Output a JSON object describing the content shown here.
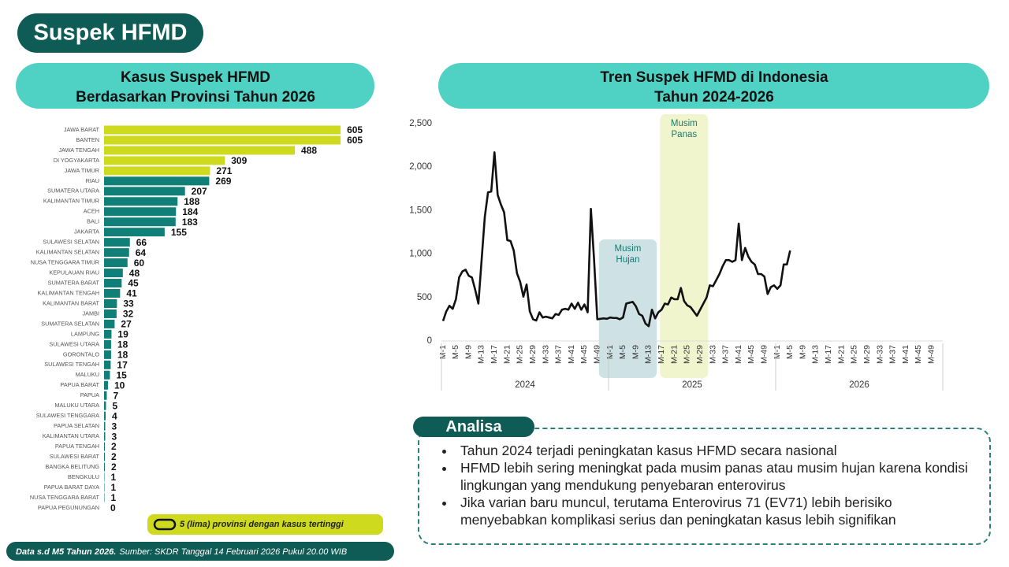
{
  "title": "Suspek HFMD",
  "footer": {
    "bold": "Data s.d M5 Tahun 2026.",
    "text": "Sumber: SKDR Tanggal 14 Februari 2026 Pukul 20.00 WIB"
  },
  "chart_data": [
    {
      "type": "bar",
      "title": [
        "Kasus Suspek HFMD",
        "Berdasarkan Provinsi Tahun 2026"
      ],
      "categories": [
        "JAWA BARAT",
        "BANTEN",
        "JAWA TENGAH",
        "DI YOGYAKARTA",
        "JAWA TIMUR",
        "RIAU",
        "SUMATERA UTARA",
        "KALIMANTAN TIMUR",
        "ACEH",
        "BALI",
        "JAKARTA",
        "SULAWESI SELATAN",
        "KALIMANTAN SELATAN",
        "NUSA TENGGARA TIMUR",
        "KEPULAUAN RIAU",
        "SUMATERA BARAT",
        "KALIMANTAN TENGAH",
        "KALIMANTAN BARAT",
        "JAMBI",
        "SUMATERA SELATAN",
        "LAMPUNG",
        "SULAWESI UTARA",
        "GORONTALO",
        "SULAWESI TENGAH",
        "MALUKU",
        "PAPUA BARAT",
        "PAPUA",
        "MALUKU UTARA",
        "SULAWESI TENGGARA",
        "PAPUA SELATAN",
        "KALIMANTAN UTARA",
        "PAPUA TENGAH",
        "SULAWESI BARAT",
        "BANGKA BELITUNG",
        "BENGKULU",
        "PAPUA BARAT DAYA",
        "NUSA TENGGARA BARAT",
        "PAPUA PEGUNUNGAN"
      ],
      "values": [
        605,
        605,
        488,
        309,
        271,
        269,
        207,
        188,
        184,
        183,
        155,
        66,
        64,
        60,
        48,
        45,
        41,
        33,
        32,
        27,
        19,
        18,
        18,
        17,
        15,
        10,
        7,
        5,
        4,
        3,
        3,
        2,
        2,
        2,
        1,
        1,
        1,
        0
      ],
      "colors": [
        "#cdda1e",
        "#cdda1e",
        "#cdda1e",
        "#cdda1e",
        "#cdda1e",
        "#0f7f78",
        "#0f7f78",
        "#0f7f78",
        "#0f7f78",
        "#0f7f78",
        "#0f7f78",
        "#0f7f78",
        "#0f7f78",
        "#0f7f78",
        "#0f7f78",
        "#0f7f78",
        "#0f7f78",
        "#0f7f78",
        "#0f7f78",
        "#0f7f78",
        "#0f7f78",
        "#0f7f78",
        "#0f7f78",
        "#0f7f78",
        "#0f7f78",
        "#0f7f78",
        "#0f7f78",
        "#0f7f78",
        "#0f7f78",
        "#0f7f78",
        "#0f7f78",
        "#0f7f78",
        "#0f7f78",
        "#0f7f78",
        "#0f7f78",
        "#0f7f78",
        "#0f7f78",
        "#0f7f78"
      ],
      "legend": {
        "label": "5 (lima) provinsi dengan kasus tertinggi",
        "color": "#cdda1e"
      }
    },
    {
      "type": "line",
      "title": [
        "Tren Suspek HFMD di Indonesia",
        "Tahun 2024-2026"
      ],
      "groups": [
        "2024",
        "2025",
        "2026"
      ],
      "categories": [
        "M-1",
        null,
        null,
        null,
        "M-5",
        null,
        null,
        null,
        "M-9",
        null,
        null,
        null,
        "M-13",
        null,
        null,
        null,
        "M-17",
        null,
        null,
        null,
        "M-21",
        null,
        null,
        null,
        "M-25",
        null,
        null,
        null,
        "M-29",
        null,
        null,
        null,
        "M-33",
        null,
        null,
        null,
        "M-37",
        null,
        null,
        null,
        "M-41",
        null,
        null,
        null,
        "M-45",
        null,
        null,
        null,
        "M-49",
        null,
        null,
        null,
        "M-1",
        null,
        null,
        null,
        "M-5",
        null,
        null,
        null,
        "M-9",
        null,
        null,
        null,
        "M-13",
        null,
        null,
        null,
        "M-17",
        null,
        null,
        null,
        "M-21",
        null,
        null,
        null,
        "M-25",
        null,
        null,
        null,
        "M-29",
        null,
        null,
        null,
        "M-33",
        null,
        null,
        null,
        "M-37",
        null,
        null,
        null,
        "M-41",
        null,
        null,
        null,
        "M-45",
        null,
        null,
        null,
        "M-49",
        null,
        null,
        null,
        "M-1",
        null,
        null,
        null,
        "M-5",
        null,
        null,
        null,
        "M-9",
        null,
        null,
        null,
        "M-13",
        null,
        null,
        null,
        "M-17",
        null,
        null,
        null,
        "M-21",
        null,
        null,
        null,
        "M-25",
        null,
        null,
        null,
        "M-29",
        null,
        null,
        null,
        "M-33",
        null,
        null,
        null,
        "M-37",
        null,
        null,
        null,
        "M-41",
        null,
        null,
        null,
        "M-45",
        null,
        null,
        null,
        "M-49",
        null,
        null,
        null
      ],
      "values": [
        230,
        340,
        405,
        370,
        480,
        730,
        800,
        820,
        750,
        730,
        590,
        430,
        930,
        1430,
        1710,
        1720,
        2170,
        1680,
        1570,
        1480,
        1160,
        1150,
        1040,
        780,
        680,
        510,
        650,
        340,
        250,
        235,
        330,
        270,
        280,
        270,
        260,
        310,
        300,
        360,
        370,
        360,
        430,
        370,
        440,
        360,
        420,
        330,
        1520,
        930,
        250,
        255,
        260,
        255,
        270,
        265,
        265,
        250,
        270,
        430,
        440,
        450,
        400,
        310,
        290,
        200,
        170,
        360,
        260,
        330,
        360,
        430,
        420,
        500,
        480,
        480,
        610,
        460,
        410,
        390,
        340,
        290,
        360,
        430,
        500,
        640,
        630,
        700,
        770,
        860,
        930,
        930,
        910,
        930,
        1350,
        930,
        1070,
        970,
        910,
        880,
        770,
        770,
        740,
        540,
        620,
        640,
        600,
        640,
        880,
        880,
        1040,
        null,
        null,
        null,
        null,
        null,
        null,
        null,
        null,
        null,
        null,
        null,
        null,
        null,
        null,
        null,
        null,
        null,
        null,
        null,
        null,
        null,
        null,
        null,
        null,
        null,
        null,
        null,
        null,
        null,
        null,
        null,
        null,
        null,
        null,
        null,
        null,
        null,
        null,
        null,
        null,
        null,
        null,
        null,
        null,
        null,
        null,
        null
      ],
      "color": "#111111",
      "ylim": [
        0,
        2500
      ],
      "yticks": [
        0,
        500,
        {
          "value": 1000,
          "label": "1,000"
        },
        {
          "value": 1500,
          "label": "1,500"
        },
        {
          "value": 2000,
          "label": "2,000"
        },
        {
          "value": 2500,
          "label": "2,500"
        }
      ],
      "regions": [
        {
          "label": [
            "Musim",
            "Hujan"
          ],
          "from": 49,
          "to": 66,
          "color": "#c6dcdf",
          "text_color": "#137c76"
        },
        {
          "label": [
            "Musim",
            "Panas"
          ],
          "from": 68,
          "to": 82,
          "color": "#eef3c4",
          "text_color": "#1f7a6a"
        }
      ]
    }
  ],
  "analysis": {
    "title": "Analisa",
    "items": [
      "Tahun 2024 terjadi peningkatan kasus HFMD secara nasional",
      "HFMD lebih sering meningkat pada musim panas atau musim hujan karena kondisi lingkungan yang mendukung penyebaran enterovirus",
      "Jika varian baru muncul, terutama Enterovirus 71 (EV71) lebih berisiko menyebabkan komplikasi serius dan peningkatan kasus lebih signifikan"
    ]
  }
}
